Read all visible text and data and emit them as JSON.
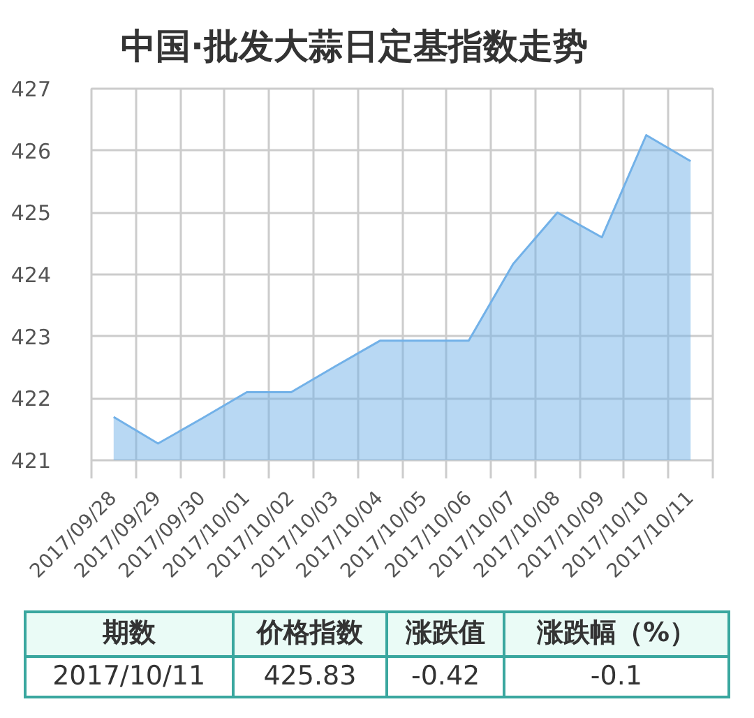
{
  "chart_data": {
    "type": "area",
    "title": "中国·批发大蒜日定基指数走势",
    "categories": [
      "2017/09/28",
      "2017/09/29",
      "2017/09/30",
      "2017/10/01",
      "2017/10/02",
      "2017/10/03",
      "2017/10/04",
      "2017/10/05",
      "2017/10/06",
      "2017/10/07",
      "2017/10/08",
      "2017/10/09",
      "2017/10/10",
      "2017/10/11"
    ],
    "series": [
      {
        "color": "#72b1e8",
        "values": [
          421.7,
          421.27,
          421.68,
          422.1,
          422.1,
          422.52,
          422.93,
          422.93,
          422.93,
          424.17,
          425.0,
          424.6,
          426.25,
          425.83
        ]
      }
    ],
    "ylim": [
      421,
      427
    ],
    "yticks": [
      421,
      422,
      423,
      424,
      425,
      426,
      427
    ],
    "grid": true,
    "annotations": [
      "期数",
      "价格指数",
      "涨跌值",
      "涨跌幅（%）",
      "2017/10/11",
      "425.83",
      "-0.42",
      "-0.1"
    ]
  }
}
